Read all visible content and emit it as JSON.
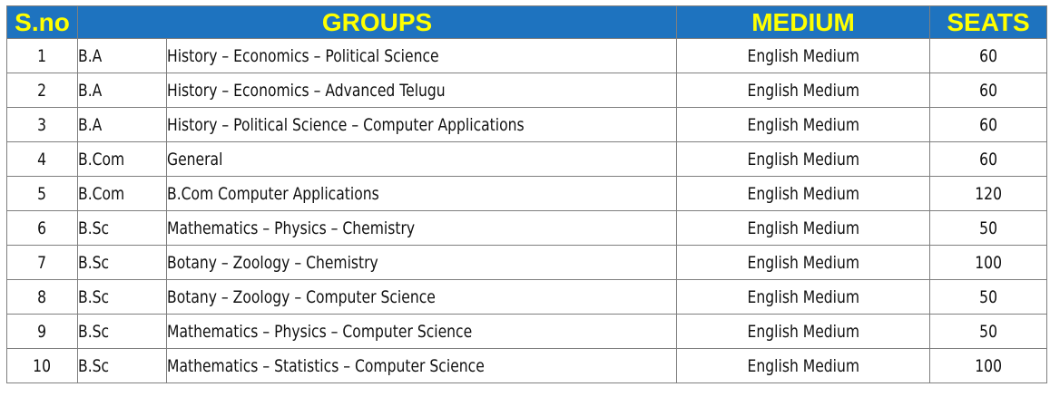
{
  "table": {
    "headers": {
      "sno": "S.no",
      "groups": "GROUPS",
      "medium": "MEDIUM",
      "seats": "SEATS"
    },
    "rows": [
      {
        "sno": "1",
        "course": "B.A",
        "group": "History – Economics – Political  Science",
        "medium": "English Medium",
        "seats": "60"
      },
      {
        "sno": "2",
        "course": "B.A",
        "group": "History – Economics – Advanced Telugu",
        "medium": "English Medium",
        "seats": "60"
      },
      {
        "sno": "3",
        "course": "B.A",
        "group": "History – Political  Science – Computer Applications",
        "medium": "English Medium",
        "seats": "60"
      },
      {
        "sno": "4",
        "course": "B.Com",
        "group": "General",
        "medium": "English Medium",
        "seats": "60"
      },
      {
        "sno": "5",
        "course": "B.Com",
        "group": "B.Com Computer Applications",
        "medium": "English Medium",
        "seats": "120"
      },
      {
        "sno": "6",
        "course": "B.Sc",
        "group": "Mathematics – Physics – Chemistry",
        "medium": "English Medium",
        "seats": "50"
      },
      {
        "sno": "7",
        "course": "B.Sc",
        "group": "Botany – Zoology – Chemistry",
        "medium": "English Medium",
        "seats": "100"
      },
      {
        "sno": "8",
        "course": "B.Sc",
        "group": "Botany – Zoology – Computer Science",
        "medium": "English Medium",
        "seats": "50"
      },
      {
        "sno": "9",
        "course": "B.Sc",
        "group": "Mathematics – Physics – Computer Science",
        "medium": "English Medium",
        "seats": "50"
      },
      {
        "sno": "10",
        "course": "B.Sc",
        "group": "Mathematics – Statistics – Computer Science",
        "medium": "English Medium",
        "seats": "100"
      }
    ]
  },
  "colors": {
    "header_bg": "#1e73bf",
    "header_text": "#ffff00",
    "border": "#7f7f7f"
  }
}
